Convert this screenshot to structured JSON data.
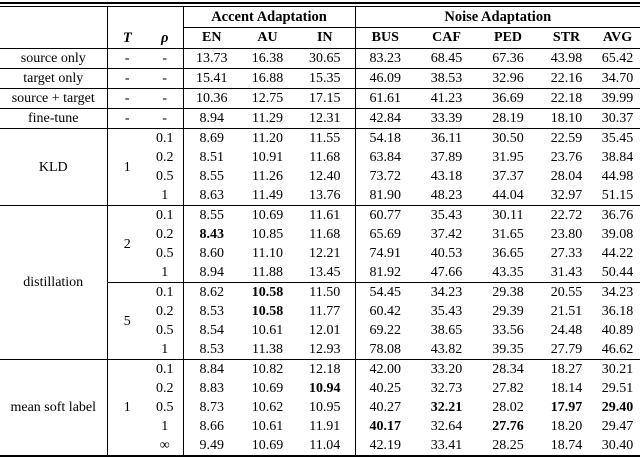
{
  "table": {
    "group_headers": [
      {
        "label": "Accent Adaptation",
        "span": 3
      },
      {
        "label": "Noise Adaptation",
        "span": 5
      }
    ],
    "param_headers": {
      "t": "T",
      "rho": "ρ"
    },
    "metric_headers": [
      "EN",
      "AU",
      "IN",
      "BUS",
      "CAF",
      "PED",
      "STR",
      "AVG"
    ],
    "baseline_rows": [
      {
        "label": "source only",
        "t": "-",
        "rho": "-",
        "values": [
          "13.73",
          "16.38",
          "30.65",
          "83.23",
          "68.45",
          "67.36",
          "43.98",
          "65.42"
        ],
        "bold": []
      },
      {
        "label": "target only",
        "t": "-",
        "rho": "-",
        "values": [
          "15.41",
          "16.88",
          "15.35",
          "46.09",
          "38.53",
          "32.96",
          "22.16",
          "34.70"
        ],
        "bold": []
      },
      {
        "label": "source + target",
        "t": "-",
        "rho": "-",
        "values": [
          "10.36",
          "12.75",
          "17.15",
          "61.61",
          "41.23",
          "36.69",
          "22.18",
          "39.99"
        ],
        "bold": []
      },
      {
        "label": "fine-tune",
        "t": "-",
        "rho": "-",
        "values": [
          "8.94",
          "11.29",
          "12.31",
          "42.84",
          "33.39",
          "28.19",
          "18.10",
          "30.37"
        ],
        "bold": []
      }
    ],
    "method_groups": [
      {
        "label": "KLD",
        "blocks": [
          {
            "t": "1",
            "rows": [
              {
                "rho": "0.1",
                "values": [
                  "8.69",
                  "11.20",
                  "11.55",
                  "54.18",
                  "36.11",
                  "30.50",
                  "22.59",
                  "35.45"
                ],
                "bold": []
              },
              {
                "rho": "0.2",
                "values": [
                  "8.51",
                  "10.91",
                  "11.68",
                  "63.84",
                  "37.89",
                  "31.95",
                  "23.76",
                  "38.84"
                ],
                "bold": []
              },
              {
                "rho": "0.5",
                "values": [
                  "8.55",
                  "11.26",
                  "12.40",
                  "73.72",
                  "43.18",
                  "37.37",
                  "28.04",
                  "44.98"
                ],
                "bold": []
              },
              {
                "rho": "1",
                "values": [
                  "8.63",
                  "11.49",
                  "13.76",
                  "81.90",
                  "48.23",
                  "44.04",
                  "32.97",
                  "51.15"
                ],
                "bold": []
              }
            ]
          }
        ]
      },
      {
        "label": "distillation",
        "blocks": [
          {
            "t": "2",
            "rows": [
              {
                "rho": "0.1",
                "values": [
                  "8.55",
                  "10.69",
                  "11.61",
                  "60.77",
                  "35.43",
                  "30.11",
                  "22.72",
                  "36.76"
                ],
                "bold": []
              },
              {
                "rho": "0.2",
                "values": [
                  "8.43",
                  "10.85",
                  "11.68",
                  "65.69",
                  "37.42",
                  "31.65",
                  "23.80",
                  "39.08"
                ],
                "bold": [
                  0
                ]
              },
              {
                "rho": "0.5",
                "values": [
                  "8.60",
                  "11.10",
                  "12.21",
                  "74.91",
                  "40.53",
                  "36.65",
                  "27.33",
                  "44.22"
                ],
                "bold": []
              },
              {
                "rho": "1",
                "values": [
                  "8.94",
                  "11.88",
                  "13.45",
                  "81.92",
                  "47.66",
                  "43.35",
                  "31.43",
                  "50.44"
                ],
                "bold": []
              }
            ]
          },
          {
            "t": "5",
            "rows": [
              {
                "rho": "0.1",
                "values": [
                  "8.62",
                  "10.58",
                  "11.50",
                  "54.45",
                  "34.23",
                  "29.38",
                  "20.55",
                  "34.23"
                ],
                "bold": [
                  1
                ]
              },
              {
                "rho": "0.2",
                "values": [
                  "8.53",
                  "10.58",
                  "11.77",
                  "60.42",
                  "35.43",
                  "29.39",
                  "21.51",
                  "36.18"
                ],
                "bold": [
                  1
                ]
              },
              {
                "rho": "0.5",
                "values": [
                  "8.54",
                  "10.61",
                  "12.01",
                  "69.22",
                  "38.65",
                  "33.56",
                  "24.48",
                  "40.89"
                ],
                "bold": []
              },
              {
                "rho": "1",
                "values": [
                  "8.53",
                  "11.38",
                  "12.93",
                  "78.08",
                  "43.82",
                  "39.35",
                  "27.79",
                  "46.62"
                ],
                "bold": []
              }
            ]
          }
        ]
      },
      {
        "label": "mean soft label",
        "blocks": [
          {
            "t": "1",
            "rows": [
              {
                "rho": "0.1",
                "values": [
                  "8.84",
                  "10.82",
                  "12.18",
                  "42.00",
                  "33.20",
                  "28.34",
                  "18.27",
                  "30.21"
                ],
                "bold": []
              },
              {
                "rho": "0.2",
                "values": [
                  "8.83",
                  "10.69",
                  "10.94",
                  "40.25",
                  "32.73",
                  "27.82",
                  "18.14",
                  "29.51"
                ],
                "bold": [
                  2
                ]
              },
              {
                "rho": "0.5",
                "values": [
                  "8.73",
                  "10.62",
                  "10.95",
                  "40.27",
                  "32.21",
                  "28.02",
                  "17.97",
                  "29.40"
                ],
                "bold": [
                  4,
                  6,
                  7
                ]
              },
              {
                "rho": "1",
                "values": [
                  "8.66",
                  "10.61",
                  "11.91",
                  "40.17",
                  "32.64",
                  "27.76",
                  "18.20",
                  "29.47"
                ],
                "bold": [
                  3,
                  5
                ]
              },
              {
                "rho": "∞",
                "values": [
                  "9.49",
                  "10.69",
                  "11.04",
                  "42.19",
                  "33.41",
                  "28.25",
                  "18.74",
                  "30.40"
                ],
                "bold": []
              }
            ]
          }
        ]
      }
    ]
  }
}
